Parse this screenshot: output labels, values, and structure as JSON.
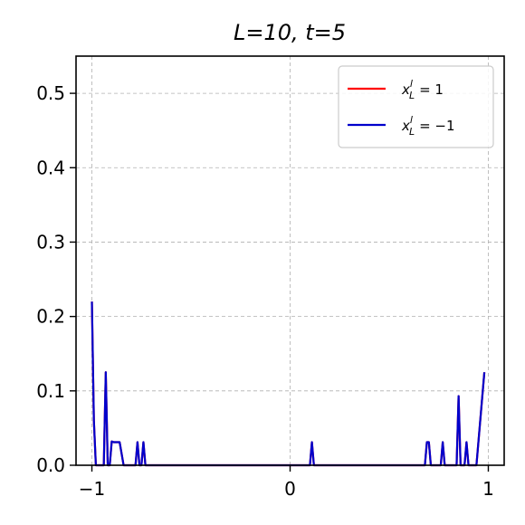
{
  "chart_data": {
    "type": "line",
    "title": "L=10, t=5",
    "xlabel": "",
    "ylabel": "",
    "xlim": [
      -1.08,
      1.08
    ],
    "ylim": [
      0,
      0.55
    ],
    "x_ticks": [
      -1,
      0,
      1
    ],
    "x_tick_labels": [
      "−1",
      "0",
      "1"
    ],
    "y_ticks": [
      0.0,
      0.1,
      0.2,
      0.3,
      0.4,
      0.5
    ],
    "y_tick_labels": [
      "0.0",
      "0.1",
      "0.2",
      "0.3",
      "0.4",
      "0.5"
    ],
    "grid": true,
    "legend_position": "top-right",
    "series": [
      {
        "name": "x_L^l = 1",
        "legend_main": "x",
        "legend_sup": "l",
        "legend_sub": "L",
        "legend_rest": "= 1",
        "color": "#ff0000",
        "x": [
          -1.0,
          -0.99,
          -0.98,
          -0.96,
          -0.94,
          -0.93,
          -0.92,
          -0.91,
          -0.9,
          -0.89,
          -0.88,
          -0.86,
          -0.84,
          -0.78,
          -0.77,
          -0.76,
          -0.75,
          -0.74,
          -0.73,
          -0.72,
          0.1,
          0.11,
          0.12,
          0.68,
          0.69,
          0.7,
          0.71,
          0.76,
          0.77,
          0.78,
          0.84,
          0.85,
          0.86,
          0.88,
          0.89,
          0.9,
          0.92,
          0.94,
          0.98
        ],
        "y": [
          0.22,
          0.06,
          0.0,
          0.0,
          0.0,
          0.125,
          0.0,
          0.0,
          0.032,
          0.031,
          0.031,
          0.031,
          0.0,
          0.0,
          0.031,
          0.0,
          0.0,
          0.031,
          0.0,
          0.0,
          0.0,
          0.031,
          0.0,
          0.0,
          0.031,
          0.031,
          0.0,
          0.0,
          0.031,
          0.0,
          0.0,
          0.093,
          0.0,
          0.0,
          0.031,
          0.0,
          0.0,
          0.0,
          0.125
        ]
      },
      {
        "name": "x_L^l = −1",
        "legend_main": "x",
        "legend_sup": "l",
        "legend_sub": "L",
        "legend_rest": "= −1",
        "color": "#0000cc",
        "x": [
          -1.0,
          -0.99,
          -0.98,
          -0.96,
          -0.94,
          -0.93,
          -0.92,
          -0.91,
          -0.9,
          -0.89,
          -0.88,
          -0.86,
          -0.84,
          -0.78,
          -0.77,
          -0.76,
          -0.75,
          -0.74,
          -0.73,
          -0.72,
          0.1,
          0.11,
          0.12,
          0.68,
          0.69,
          0.7,
          0.71,
          0.76,
          0.77,
          0.78,
          0.84,
          0.85,
          0.86,
          0.88,
          0.89,
          0.9,
          0.92,
          0.94,
          0.98
        ],
        "y": [
          0.22,
          0.06,
          0.0,
          0.0,
          0.0,
          0.125,
          0.0,
          0.0,
          0.032,
          0.031,
          0.031,
          0.031,
          0.0,
          0.0,
          0.031,
          0.0,
          0.0,
          0.031,
          0.0,
          0.0,
          0.0,
          0.031,
          0.0,
          0.0,
          0.031,
          0.031,
          0.0,
          0.0,
          0.031,
          0.0,
          0.0,
          0.093,
          0.0,
          0.0,
          0.031,
          0.0,
          0.0,
          0.0,
          0.125
        ]
      }
    ]
  }
}
